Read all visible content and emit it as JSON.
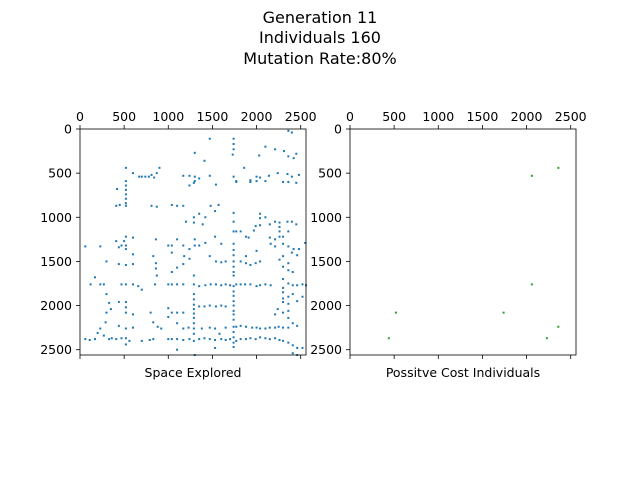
{
  "figure": {
    "title_lines": [
      "Generation 11",
      "Individuals 160",
      "Mutation Rate:80%"
    ]
  },
  "chart_data": [
    {
      "type": "scatter",
      "xlabel": "Space Explored",
      "ylabel": "",
      "xlim": [
        0,
        2560
      ],
      "ylim": [
        2560,
        0
      ],
      "x_ticks": [
        0,
        500,
        1000,
        1500,
        2000,
        2500
      ],
      "y_ticks": [
        0,
        500,
        1000,
        1500,
        2000,
        2500
      ],
      "x_tick_position": "top",
      "y_inverted": true,
      "grid": false,
      "marker_color": "#1f77b4",
      "points": [
        [
          1740,
          110
        ],
        [
          1740,
          170
        ],
        [
          1740,
          230
        ],
        [
          2360,
          20
        ],
        [
          2400,
          40
        ],
        [
          1470,
          110
        ],
        [
          2100,
          200
        ],
        [
          2210,
          230
        ],
        [
          1300,
          270
        ],
        [
          1730,
          290
        ],
        [
          2030,
          300
        ],
        [
          2360,
          310
        ],
        [
          2310,
          250
        ],
        [
          2450,
          280
        ],
        [
          1410,
          360
        ],
        [
          2420,
          330
        ],
        [
          1860,
          440
        ],
        [
          2240,
          500
        ],
        [
          2350,
          510
        ],
        [
          2400,
          540
        ],
        [
          2480,
          520
        ],
        [
          2300,
          600
        ],
        [
          2360,
          600
        ],
        [
          2450,
          610
        ],
        [
          1300,
          540
        ],
        [
          1470,
          530
        ],
        [
          1740,
          540
        ],
        [
          1770,
          590
        ],
        [
          2000,
          590
        ],
        [
          2040,
          550
        ],
        [
          1930,
          580
        ],
        [
          2100,
          590
        ],
        [
          2140,
          530
        ],
        [
          2000,
          540
        ],
        [
          520,
          440
        ],
        [
          600,
          500
        ],
        [
          670,
          540
        ],
        [
          700,
          540
        ],
        [
          740,
          540
        ],
        [
          780,
          540
        ],
        [
          840,
          550
        ],
        [
          810,
          520
        ],
        [
          900,
          440
        ],
        [
          870,
          500
        ],
        [
          1240,
          530
        ],
        [
          1170,
          530
        ],
        [
          1350,
          560
        ],
        [
          1300,
          590
        ],
        [
          1240,
          640
        ],
        [
          1540,
          630
        ],
        [
          1290,
          610
        ],
        [
          1770,
          600
        ],
        [
          1930,
          600
        ],
        [
          520,
          590
        ],
        [
          520,
          640
        ],
        [
          520,
          690
        ],
        [
          520,
          740
        ],
        [
          520,
          790
        ],
        [
          520,
          840
        ],
        [
          420,
          680
        ],
        [
          450,
          860
        ],
        [
          410,
          870
        ],
        [
          520,
          870
        ],
        [
          810,
          870
        ],
        [
          870,
          880
        ],
        [
          1040,
          860
        ],
        [
          1100,
          870
        ],
        [
          1170,
          870
        ],
        [
          1480,
          870
        ],
        [
          1570,
          860
        ],
        [
          1530,
          930
        ],
        [
          1290,
          1000
        ],
        [
          1350,
          960
        ],
        [
          1390,
          1080
        ],
        [
          1420,
          1000
        ],
        [
          1290,
          1060
        ],
        [
          1200,
          1050
        ],
        [
          1740,
          950
        ],
        [
          1740,
          1050
        ],
        [
          1740,
          1160
        ],
        [
          1770,
          1160
        ],
        [
          1820,
          1160
        ],
        [
          1880,
          1220
        ],
        [
          1910,
          1230
        ],
        [
          1970,
          1150
        ],
        [
          1990,
          1100
        ],
        [
          2040,
          960
        ],
        [
          2040,
          1010
        ],
        [
          2040,
          1090
        ],
        [
          2100,
          1000
        ],
        [
          2150,
          1080
        ],
        [
          2210,
          1050
        ],
        [
          2260,
          1060
        ],
        [
          2260,
          1110
        ],
        [
          2260,
          1160
        ],
        [
          2350,
          1050
        ],
        [
          2400,
          1050
        ],
        [
          2450,
          1080
        ],
        [
          2360,
          1160
        ],
        [
          2300,
          1220
        ],
        [
          2210,
          1250
        ],
        [
          2260,
          1220
        ],
        [
          2150,
          1230
        ],
        [
          2160,
          1300
        ],
        [
          2210,
          1330
        ],
        [
          2300,
          1300
        ],
        [
          2360,
          1330
        ],
        [
          2420,
          1360
        ],
        [
          2480,
          1360
        ],
        [
          2550,
          1290
        ],
        [
          2400,
          1400
        ],
        [
          2460,
          1430
        ],
        [
          2300,
          1440
        ],
        [
          2260,
          1480
        ],
        [
          2360,
          1520
        ],
        [
          2300,
          1560
        ],
        [
          2360,
          1600
        ],
        [
          2410,
          1620
        ],
        [
          2300,
          1700
        ],
        [
          2360,
          1750
        ],
        [
          2410,
          1770
        ],
        [
          2460,
          1770
        ],
        [
          2520,
          1760
        ],
        [
          2560,
          1770
        ],
        [
          2300,
          1800
        ],
        [
          2300,
          1850
        ],
        [
          2300,
          1920
        ],
        [
          2300,
          1960
        ],
        [
          2360,
          1900
        ],
        [
          2360,
          1980
        ],
        [
          2410,
          1870
        ],
        [
          2460,
          1950
        ],
        [
          2520,
          1900
        ],
        [
          2360,
          2060
        ],
        [
          2300,
          2080
        ],
        [
          2210,
          2100
        ],
        [
          2240,
          2040
        ],
        [
          2360,
          2140
        ],
        [
          2410,
          2200
        ],
        [
          2460,
          2230
        ],
        [
          2360,
          2250
        ],
        [
          2300,
          2250
        ],
        [
          2250,
          2240
        ],
        [
          2210,
          2250
        ],
        [
          2150,
          2250
        ],
        [
          2100,
          2260
        ],
        [
          2040,
          2260
        ],
        [
          2000,
          2250
        ],
        [
          1950,
          2250
        ],
        [
          1880,
          2240
        ],
        [
          1820,
          2230
        ],
        [
          1770,
          2240
        ],
        [
          1740,
          2240
        ],
        [
          1740,
          2300
        ],
        [
          1740,
          2360
        ],
        [
          1740,
          2420
        ],
        [
          1740,
          2470
        ],
        [
          1770,
          2400
        ],
        [
          1820,
          2380
        ],
        [
          1880,
          2380
        ],
        [
          1930,
          2370
        ],
        [
          1990,
          2380
        ],
        [
          2040,
          2360
        ],
        [
          2100,
          2370
        ],
        [
          2150,
          2380
        ],
        [
          2210,
          2370
        ],
        [
          2260,
          2390
        ],
        [
          2300,
          2400
        ],
        [
          2360,
          2420
        ],
        [
          2410,
          2450
        ],
        [
          2460,
          2480
        ],
        [
          2520,
          2480
        ],
        [
          2410,
          2540
        ],
        [
          2460,
          2560
        ],
        [
          60,
          1330
        ],
        [
          120,
          1760
        ],
        [
          170,
          1680
        ],
        [
          230,
          1760
        ],
        [
          270,
          1760
        ],
        [
          300,
          1500
        ],
        [
          230,
          1330
        ],
        [
          300,
          1870
        ],
        [
          330,
          1970
        ],
        [
          300,
          2080
        ],
        [
          350,
          2040
        ],
        [
          290,
          2190
        ],
        [
          230,
          2260
        ],
        [
          200,
          2310
        ],
        [
          270,
          2340
        ],
        [
          170,
          2380
        ],
        [
          110,
          2390
        ],
        [
          60,
          2380
        ],
        [
          330,
          2380
        ],
        [
          360,
          2370
        ],
        [
          410,
          2380
        ],
        [
          470,
          2370
        ],
        [
          520,
          2370
        ],
        [
          560,
          2400
        ],
        [
          520,
          2440
        ],
        [
          410,
          1270
        ],
        [
          440,
          1340
        ],
        [
          470,
          1320
        ],
        [
          520,
          1320
        ],
        [
          500,
          1270
        ],
        [
          520,
          1220
        ],
        [
          520,
          1360
        ],
        [
          600,
          1230
        ],
        [
          600,
          1420
        ],
        [
          600,
          1530
        ],
        [
          520,
          1540
        ],
        [
          440,
          1530
        ],
        [
          470,
          1760
        ],
        [
          520,
          1760
        ],
        [
          600,
          1760
        ],
        [
          660,
          1780
        ],
        [
          700,
          1820
        ],
        [
          440,
          1960
        ],
        [
          520,
          1960
        ],
        [
          520,
          2020
        ],
        [
          520,
          2080
        ],
        [
          600,
          2100
        ],
        [
          440,
          2230
        ],
        [
          520,
          2260
        ],
        [
          600,
          2250
        ],
        [
          860,
          1250
        ],
        [
          830,
          1440
        ],
        [
          860,
          1520
        ],
        [
          860,
          1580
        ],
        [
          870,
          1660
        ],
        [
          850,
          1760
        ],
        [
          800,
          2080
        ],
        [
          830,
          2190
        ],
        [
          880,
          2240
        ],
        [
          920,
          2260
        ],
        [
          830,
          2380
        ],
        [
          790,
          2390
        ],
        [
          700,
          2400
        ],
        [
          1000,
          1320
        ],
        [
          1040,
          1320
        ],
        [
          1100,
          1250
        ],
        [
          1040,
          1400
        ],
        [
          1170,
          1320
        ],
        [
          1240,
          1360
        ],
        [
          1180,
          1440
        ],
        [
          1240,
          1470
        ],
        [
          1170,
          1530
        ],
        [
          1100,
          1570
        ],
        [
          1040,
          1620
        ],
        [
          1000,
          1760
        ],
        [
          1040,
          1760
        ],
        [
          1100,
          1760
        ],
        [
          1170,
          1760
        ],
        [
          1290,
          1760
        ],
        [
          1350,
          1780
        ],
        [
          1420,
          1770
        ],
        [
          1480,
          1760
        ],
        [
          1540,
          1760
        ],
        [
          1600,
          1770
        ],
        [
          1650,
          1760
        ],
        [
          1700,
          1770
        ],
        [
          1740,
          1780
        ],
        [
          1770,
          1760
        ],
        [
          1820,
          1760
        ],
        [
          1870,
          1760
        ],
        [
          1930,
          1760
        ],
        [
          2000,
          1780
        ],
        [
          2040,
          1770
        ],
        [
          2100,
          1760
        ],
        [
          2160,
          1770
        ],
        [
          1300,
          1250
        ],
        [
          1300,
          1320
        ],
        [
          1350,
          1320
        ],
        [
          1420,
          1290
        ],
        [
          1530,
          1220
        ],
        [
          1600,
          1300
        ],
        [
          1470,
          1440
        ],
        [
          1540,
          1500
        ],
        [
          1600,
          1510
        ],
        [
          1650,
          1500
        ],
        [
          1740,
          1300
        ],
        [
          1740,
          1370
        ],
        [
          1740,
          1430
        ],
        [
          1740,
          1500
        ],
        [
          1740,
          1560
        ],
        [
          1740,
          1620
        ],
        [
          1740,
          1660
        ],
        [
          1740,
          1840
        ],
        [
          1740,
          1890
        ],
        [
          1740,
          1950
        ],
        [
          1740,
          2000
        ],
        [
          1740,
          2060
        ],
        [
          1740,
          2100
        ],
        [
          1740,
          2160
        ],
        [
          1820,
          1500
        ],
        [
          1880,
          1520
        ],
        [
          1930,
          1540
        ],
        [
          1990,
          1520
        ],
        [
          2040,
          1500
        ],
        [
          1880,
          1440
        ],
        [
          2000,
          1380
        ],
        [
          1290,
          1660
        ],
        [
          1290,
          1870
        ],
        [
          1290,
          1930
        ],
        [
          1290,
          1990
        ],
        [
          1290,
          2040
        ],
        [
          1290,
          2090
        ],
        [
          1290,
          2140
        ],
        [
          1290,
          2200
        ],
        [
          1290,
          2260
        ],
        [
          1290,
          2320
        ],
        [
          1290,
          2400
        ],
        [
          1300,
          2560
        ],
        [
          1350,
          2010
        ],
        [
          1410,
          2010
        ],
        [
          1470,
          2000
        ],
        [
          1540,
          2010
        ],
        [
          1600,
          2000
        ],
        [
          1650,
          2010
        ],
        [
          1040,
          2080
        ],
        [
          1100,
          2080
        ],
        [
          1170,
          2080
        ],
        [
          1000,
          2030
        ],
        [
          1000,
          2130
        ],
        [
          1100,
          2200
        ],
        [
          1170,
          2260
        ],
        [
          1230,
          2250
        ],
        [
          1380,
          2260
        ],
        [
          1470,
          2250
        ],
        [
          1530,
          2260
        ],
        [
          1580,
          2320
        ],
        [
          1650,
          2250
        ],
        [
          1000,
          2380
        ],
        [
          1040,
          2380
        ],
        [
          1100,
          2380
        ],
        [
          1170,
          2390
        ],
        [
          1240,
          2380
        ],
        [
          1350,
          2380
        ],
        [
          1410,
          2370
        ],
        [
          1470,
          2380
        ],
        [
          1530,
          2390
        ],
        [
          1600,
          2380
        ],
        [
          1650,
          2390
        ],
        [
          1700,
          2380
        ],
        [
          1100,
          2500
        ],
        [
          1530,
          2480
        ]
      ]
    },
    {
      "type": "scatter",
      "xlabel": "Possitve Cost Individuals",
      "ylabel": "",
      "xlim": [
        0,
        2560
      ],
      "ylim": [
        2560,
        0
      ],
      "x_ticks": [
        0,
        500,
        1000,
        1500,
        2000,
        2500
      ],
      "y_ticks": [
        0,
        500,
        1000,
        1500,
        2000,
        2500
      ],
      "x_tick_position": "top",
      "y_inverted": true,
      "grid": false,
      "marker_color": "#2ca02c",
      "points": [
        [
          2360,
          440
        ],
        [
          2060,
          530
        ],
        [
          2060,
          1760
        ],
        [
          1740,
          2080
        ],
        [
          520,
          2080
        ],
        [
          2360,
          2240
        ],
        [
          2230,
          2370
        ],
        [
          440,
          2370
        ]
      ]
    }
  ]
}
